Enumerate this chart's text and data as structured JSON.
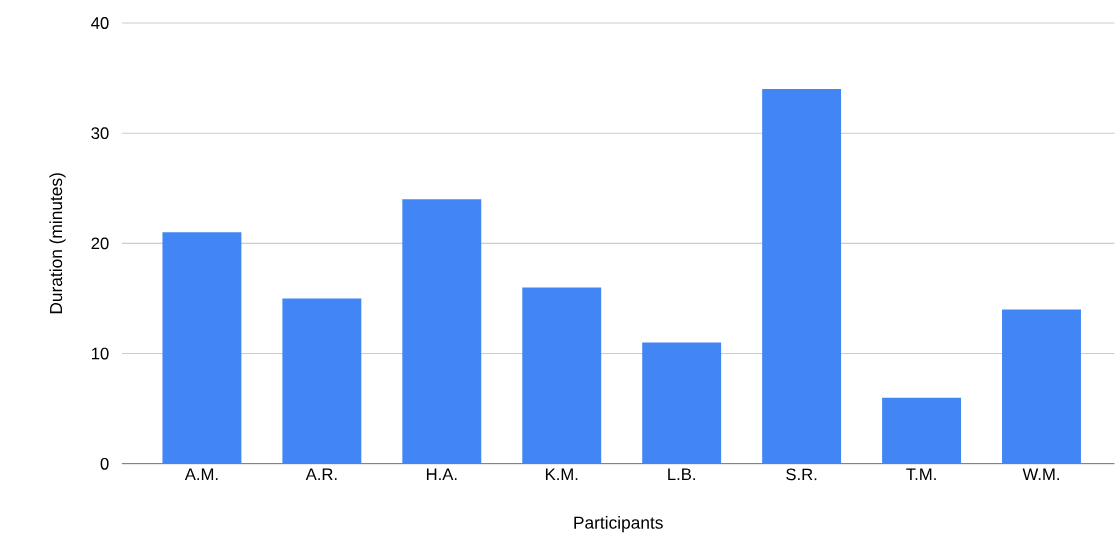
{
  "chart_data": {
    "type": "bar",
    "xlabel": "Participants",
    "ylabel": "Duration (minutes)",
    "categories": [
      "A.M.",
      "A.R.",
      "H.A.",
      "K.M.",
      "L.B.",
      "S.R.",
      "T.M.",
      "W.M."
    ],
    "values": [
      21,
      15,
      24,
      16,
      11,
      34,
      6,
      14
    ],
    "color": "#4285f4",
    "ylim": [
      0,
      40
    ],
    "yticks": [
      0,
      10,
      20,
      30,
      40
    ],
    "grid": "y"
  }
}
